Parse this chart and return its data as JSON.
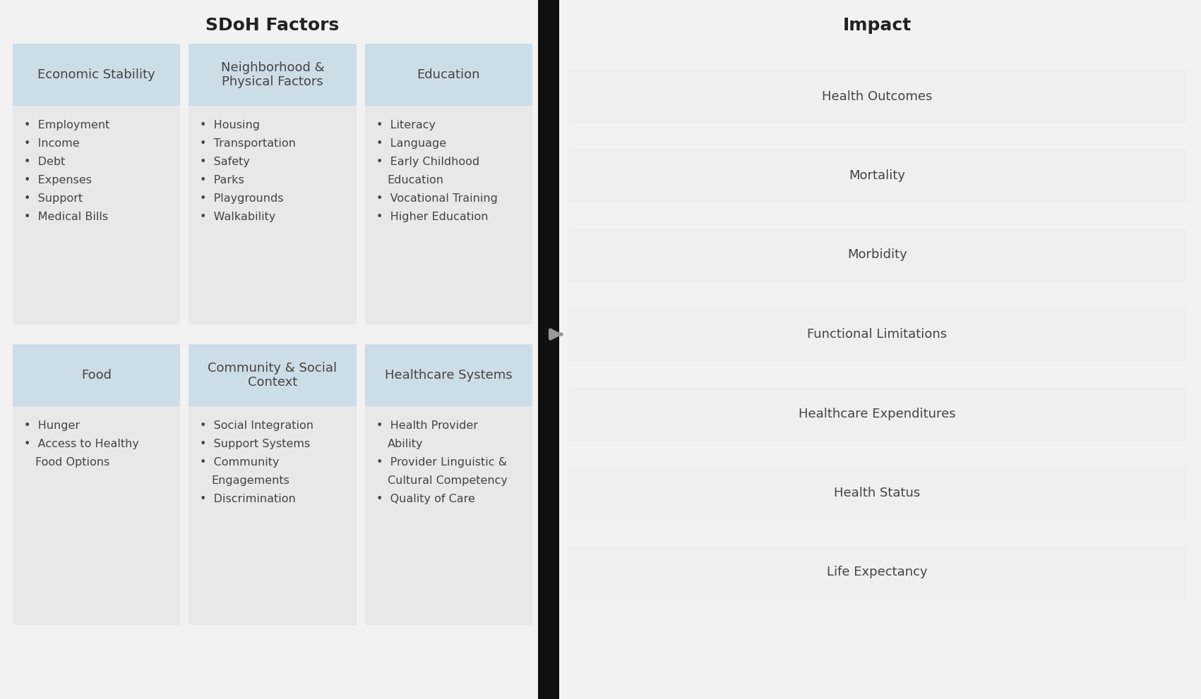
{
  "title_sdoh": "SDoH Factors",
  "title_impact": "Impact",
  "bg_color": "#f2f2f2",
  "header_bg": "#ccdde8",
  "body_bg": "#e8e8e8",
  "impact_box_bg": "#efefef",
  "divider_color": "#111111",
  "text_color": "#444444",
  "title_color": "#222222",
  "sdoh_categories": [
    {
      "title": "Economic Stability",
      "items": [
        "Employment",
        "Income",
        "Debt",
        "Expenses",
        "Support",
        "Medical Bills"
      ],
      "col": 0,
      "row": 0
    },
    {
      "title": "Neighborhood &\nPhysical Factors",
      "items": [
        "Housing",
        "Transportation",
        "Safety",
        "Parks",
        "Playgrounds",
        "Walkability"
      ],
      "col": 1,
      "row": 0
    },
    {
      "title": "Education",
      "items": [
        "Literacy",
        "Language",
        "Early Childhood\nEducation",
        "Vocational Training",
        "Higher Education"
      ],
      "col": 2,
      "row": 0
    },
    {
      "title": "Food",
      "items": [
        "Hunger",
        "Access to Healthy\nFood Options"
      ],
      "col": 0,
      "row": 1
    },
    {
      "title": "Community & Social\nContext",
      "items": [
        "Social Integration",
        "Support Systems",
        "Community\nEngagements",
        "Discrimination"
      ],
      "col": 1,
      "row": 1
    },
    {
      "title": "Healthcare Systems",
      "items": [
        "Health Provider\nAbility",
        "Provider Linguistic &\nCultural Competency",
        "Quality of Care"
      ],
      "col": 2,
      "row": 1
    }
  ],
  "impact_items": [
    "Health Outcomes",
    "Mortality",
    "Morbidity",
    "Functional Limitations",
    "Healthcare Expenditures",
    "Health Status",
    "Life Expectancy"
  ]
}
